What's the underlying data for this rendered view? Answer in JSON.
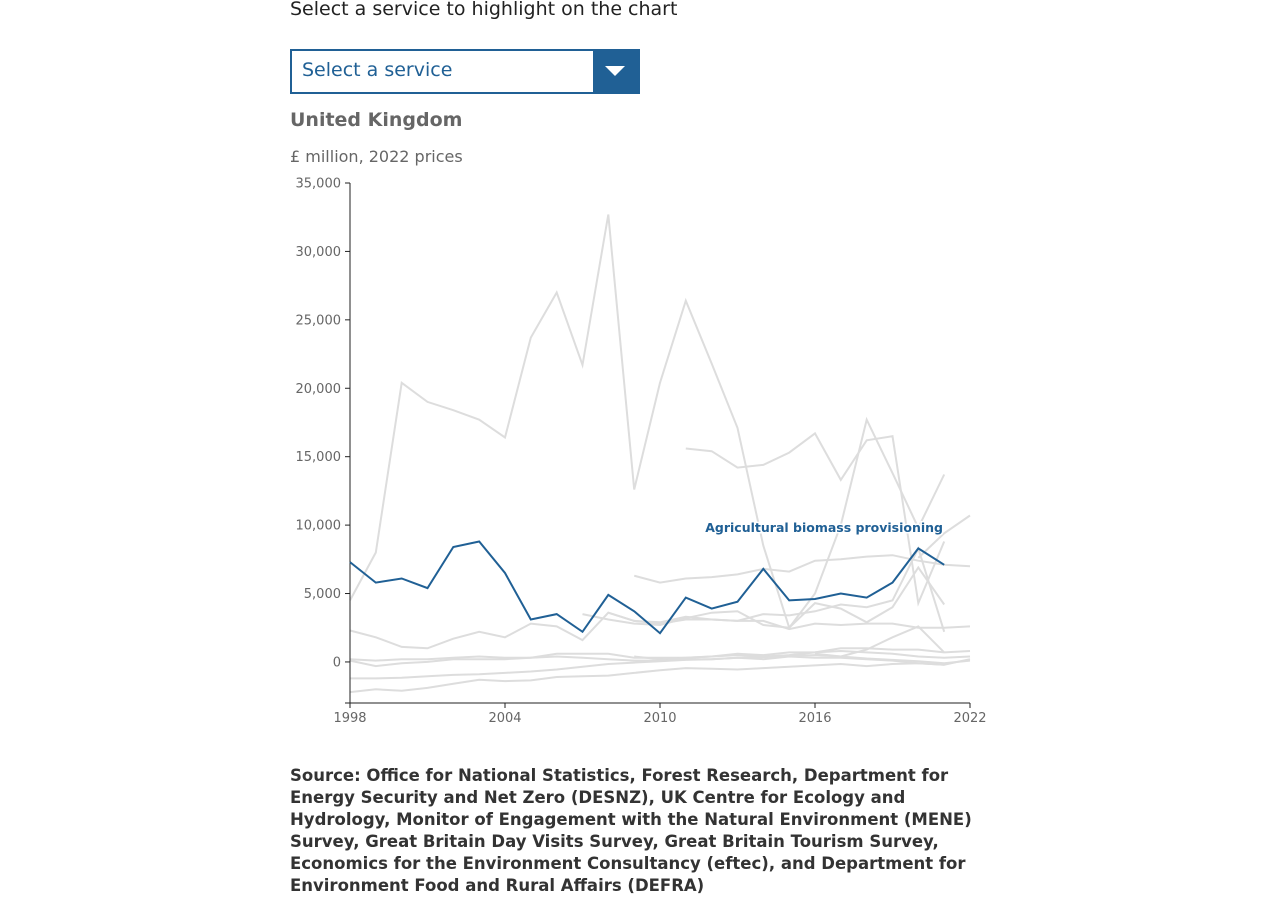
{
  "prompt": "Select a service to highlight on the chart",
  "select": {
    "value": "Select a service"
  },
  "subtitle": "United Kingdom",
  "units": "£ million, 2022 prices",
  "source": "Source: Office for National Statistics, Forest Research, Department for Energy Security and Net Zero (DESNZ), UK Centre for Ecology and Hydrology, Monitor of Engagement with the Natural Environment (MENE) Survey, Great Britain Day Visits Survey, Great Britain Tourism Survey, Economics for the Environment Consultancy (eftec), and Department for Environment Food and Rural Affairs (DEFRA)",
  "colors": {
    "accent": "#206095",
    "background_series": "#dddddd"
  },
  "chart_data": {
    "type": "line",
    "xlim": [
      1998,
      2022
    ],
    "ylim": [
      -3000,
      35000
    ],
    "xticks": [
      1998,
      2004,
      2010,
      2016,
      2022
    ],
    "yticks": [
      0,
      5000,
      10000,
      15000,
      20000,
      25000,
      30000,
      35000
    ],
    "xtick_labels": [
      "1998",
      "2004",
      "2010",
      "2016",
      "2022"
    ],
    "ytick_labels": [
      "0",
      "5,000",
      "10,000",
      "15,000",
      "20,000",
      "25,000",
      "30,000",
      "35,000"
    ],
    "grid": false,
    "highlight": {
      "name": "Agricultural biomass provisioning",
      "x": [
        1998,
        1999,
        2000,
        2001,
        2002,
        2003,
        2004,
        2005,
        2006,
        2007,
        2008,
        2009,
        2010,
        2011,
        2012,
        2013,
        2014,
        2015,
        2016,
        2017,
        2018,
        2019,
        2020,
        2021
      ],
      "y": [
        7300,
        5800,
        6100,
        5400,
        8400,
        8800,
        6500,
        3100,
        3500,
        2200,
        4900,
        3700,
        2100,
        4700,
        3900,
        4400,
        6800,
        4500,
        4600,
        5000,
        4700,
        5800,
        8300,
        7100
      ]
    },
    "series": [
      {
        "x": [
          1998,
          1999,
          2000,
          2001,
          2002,
          2003,
          2004,
          2005,
          2006,
          2007,
          2008,
          2009,
          2010,
          2011,
          2012,
          2013,
          2014,
          2015
        ],
        "y": [
          4500,
          8000,
          20400,
          19000,
          18400,
          17700,
          16400,
          23700,
          27000,
          21700,
          32700,
          12600,
          20400,
          26400,
          21800,
          17100,
          8500,
          2500
        ]
      },
      {
        "x": [
          2011,
          2012,
          2013,
          2014,
          2015,
          2016,
          2017,
          2018,
          2019,
          2020,
          2021
        ],
        "y": [
          15600,
          15400,
          14200,
          14400,
          15300,
          16700,
          13300,
          16200,
          16500,
          4300,
          8800
        ]
      },
      {
        "x": [
          2015,
          2016,
          2017,
          2018,
          2019,
          2020,
          2021
        ],
        "y": [
          2500,
          5000,
          10000,
          17700,
          13800,
          9800,
          13700
        ]
      },
      {
        "x": [
          2009,
          2010,
          2011,
          2012,
          2013,
          2014,
          2015,
          2016,
          2017,
          2018,
          2019,
          2020,
          2021,
          2022
        ],
        "y": [
          6300,
          5800,
          6100,
          6200,
          6400,
          6800,
          6600,
          7400,
          7500,
          7700,
          7800,
          7400,
          7100,
          7000
        ]
      },
      {
        "x": [
          2020,
          2021,
          2022
        ],
        "y": [
          7600,
          9400,
          10700
        ]
      },
      {
        "x": [
          2007,
          2008,
          2009,
          2010,
          2011,
          2012,
          2013,
          2014,
          2015,
          2016,
          2017,
          2018,
          2019,
          2020,
          2021
        ],
        "y": [
          3500,
          3100,
          2800,
          2700,
          3200,
          3600,
          3700,
          2700,
          2500,
          4300,
          3900,
          2900,
          4000,
          6900,
          4200
        ]
      },
      {
        "x": [
          2008,
          2009,
          2010,
          2011,
          2012,
          2013,
          2014,
          2015,
          2016,
          2017,
          2018,
          2019,
          2020,
          2021
        ],
        "y": [
          3600,
          3000,
          2900,
          3300,
          3100,
          3000,
          3500,
          3400,
          3700,
          4200,
          4000,
          4500,
          8300,
          2200
        ]
      },
      {
        "x": [
          1998,
          1999,
          2000,
          2001,
          2002,
          2003,
          2004,
          2005,
          2006,
          2007,
          2008,
          2009,
          2010,
          2011,
          2012,
          2013,
          2014,
          2015,
          2016,
          2017,
          2018,
          2019,
          2020,
          2021,
          2022
        ],
        "y": [
          2300,
          1800,
          1100,
          1000,
          1700,
          2200,
          1800,
          2800,
          2600,
          1600,
          3600,
          3000,
          2800,
          3100,
          3100,
          3000,
          3000,
          2400,
          2800,
          2700,
          2800,
          2800,
          2500,
          2500,
          2600
        ]
      },
      {
        "x": [
          2016,
          2017,
          2018,
          2019,
          2020,
          2021
        ],
        "y": [
          600,
          400,
          900,
          1800,
          2600,
          700
        ]
      },
      {
        "x": [
          1998,
          1999,
          2000,
          2001,
          2002,
          2003,
          2004,
          2005,
          2006,
          2007,
          2008,
          2009,
          2010,
          2011,
          2012,
          2013,
          2014,
          2015,
          2016,
          2017,
          2018,
          2019,
          2020,
          2021,
          2022
        ],
        "y": [
          200,
          100,
          200,
          200,
          300,
          400,
          300,
          300,
          600,
          600,
          600,
          300,
          300,
          300,
          400,
          500,
          400,
          500,
          700,
          1000,
          1000,
          900,
          900,
          700,
          800
        ]
      },
      {
        "x": [
          1998,
          1999,
          2000,
          2001,
          2002,
          2003,
          2004,
          2005,
          2006,
          2007,
          2008,
          2009,
          2010,
          2011,
          2012,
          2013,
          2014,
          2015,
          2016,
          2017,
          2018,
          2019,
          2020,
          2021,
          2022
        ],
        "y": [
          100,
          -300,
          -100,
          0,
          200,
          200,
          200,
          300,
          400,
          300,
          200,
          100,
          100,
          200,
          200,
          300,
          200,
          400,
          300,
          300,
          200,
          100,
          -100,
          -200,
          200
        ]
      },
      {
        "x": [
          1998,
          1999,
          2000,
          2001,
          2002,
          2003,
          2004,
          2005,
          2006,
          2007,
          2008,
          2009,
          2010,
          2011,
          2012,
          2013,
          2014,
          2015,
          2016,
          2017,
          2018,
          2019,
          2020,
          2021,
          2022
        ],
        "y": [
          -1200,
          -1200,
          -1150,
          -1050,
          -950,
          -900,
          -800,
          -700,
          -550,
          -350,
          -150,
          -50,
          50,
          150,
          200,
          300,
          350,
          450,
          500,
          400,
          250,
          150,
          50,
          -100,
          100
        ]
      },
      {
        "x": [
          1998,
          1999,
          2000,
          2001,
          2002,
          2003,
          2004,
          2005,
          2006,
          2007,
          2008,
          2009,
          2010,
          2011,
          2012,
          2013,
          2014,
          2015,
          2016,
          2017,
          2018,
          2019,
          2020,
          2021
        ],
        "y": [
          -2200,
          -2000,
          -2100,
          -1900,
          -1600,
          -1300,
          -1400,
          -1350,
          -1100,
          -1050,
          -1000,
          -800,
          -600,
          -450,
          -500,
          -550,
          -450,
          -350,
          -250,
          -150,
          -300,
          -150,
          -100,
          -200
        ]
      },
      {
        "x": [
          2009,
          2010,
          2011,
          2012,
          2013,
          2014,
          2015,
          2016,
          2017,
          2018,
          2019,
          2020,
          2021,
          2022
        ],
        "y": [
          400,
          200,
          300,
          400,
          600,
          500,
          700,
          700,
          800,
          700,
          600,
          400,
          300,
          400
        ]
      }
    ]
  }
}
